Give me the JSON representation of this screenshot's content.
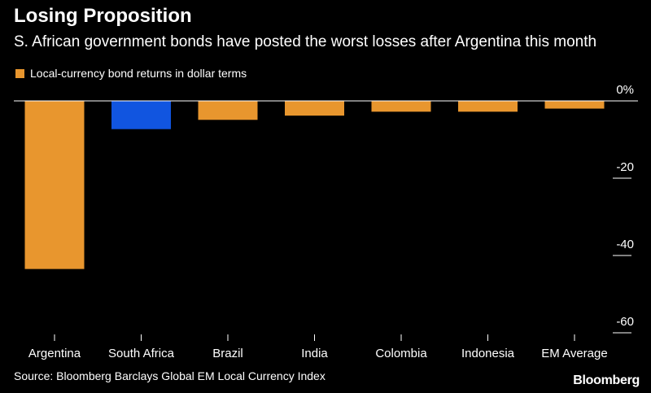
{
  "header": {
    "title": "Losing Proposition",
    "subtitle": "S. African government bonds have posted the worst losses after Argentina this month"
  },
  "legend": {
    "label": "Local-currency bond returns in dollar terms",
    "color": "#E8962E"
  },
  "colors": {
    "default_bar": "#E8962E",
    "highlight_bar": "#1155E0",
    "axis": "#FFFFFF"
  },
  "chart_data": {
    "type": "bar",
    "title": "Losing Proposition",
    "subtitle": "S. African government bonds have posted the worst losses after Argentina this month",
    "categories": [
      "Argentina",
      "South Africa",
      "Brazil",
      "India",
      "Colombia",
      "Indonesia",
      "EM Average"
    ],
    "series": [
      {
        "name": "Local-currency bond returns in dollar terms",
        "values": [
          -43.5,
          -7.3,
          -4.9,
          -3.8,
          -2.8,
          -2.8,
          -2.0
        ]
      }
    ],
    "highlight_index": 1,
    "ylim": [
      -60,
      0
    ],
    "yticks": [
      {
        "value": 0,
        "label": "0%"
      },
      {
        "value": -20,
        "label": "-20"
      },
      {
        "value": -40,
        "label": "-40"
      },
      {
        "value": -60,
        "label": "-60"
      }
    ],
    "xlabel": "",
    "ylabel": ""
  },
  "footer": {
    "source": "Source: Bloomberg Barclays Global EM Local Currency Index",
    "brand": "Bloomberg"
  }
}
